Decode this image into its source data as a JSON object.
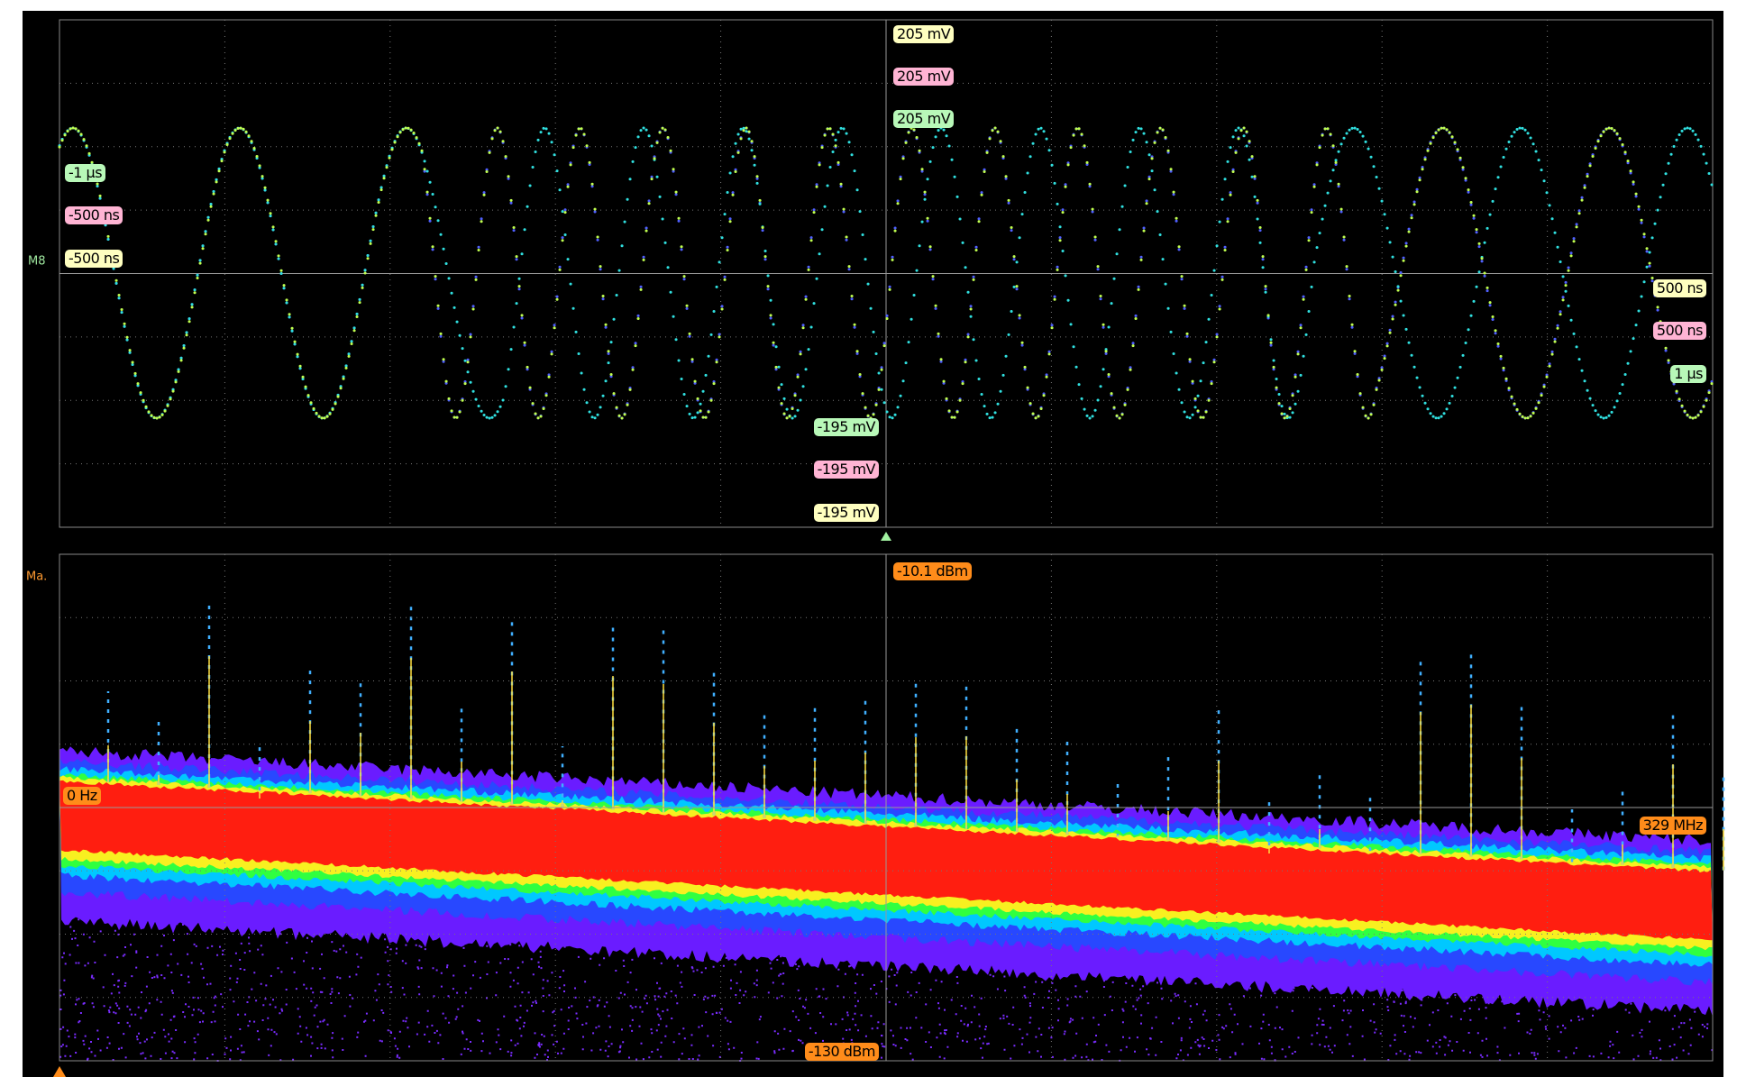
{
  "top_panel": {
    "channel_label": "M8",
    "voltage_top": [
      "205 mV",
      "205 mV",
      "205 mV"
    ],
    "time_left": [
      "-1 µs",
      "-500 ns",
      "-500 ns"
    ],
    "time_right": [
      "500 ns",
      "500 ns",
      "1 µs"
    ],
    "voltage_bottom": [
      "-195 mV",
      "-195 mV",
      "-195 mV"
    ]
  },
  "bottom_panel": {
    "channel_label": "Ma.",
    "level_top": "-10.1 dBm",
    "freq_left": "0 Hz",
    "freq_right": "329 MHz",
    "level_bottom": "-130 dBm"
  }
}
